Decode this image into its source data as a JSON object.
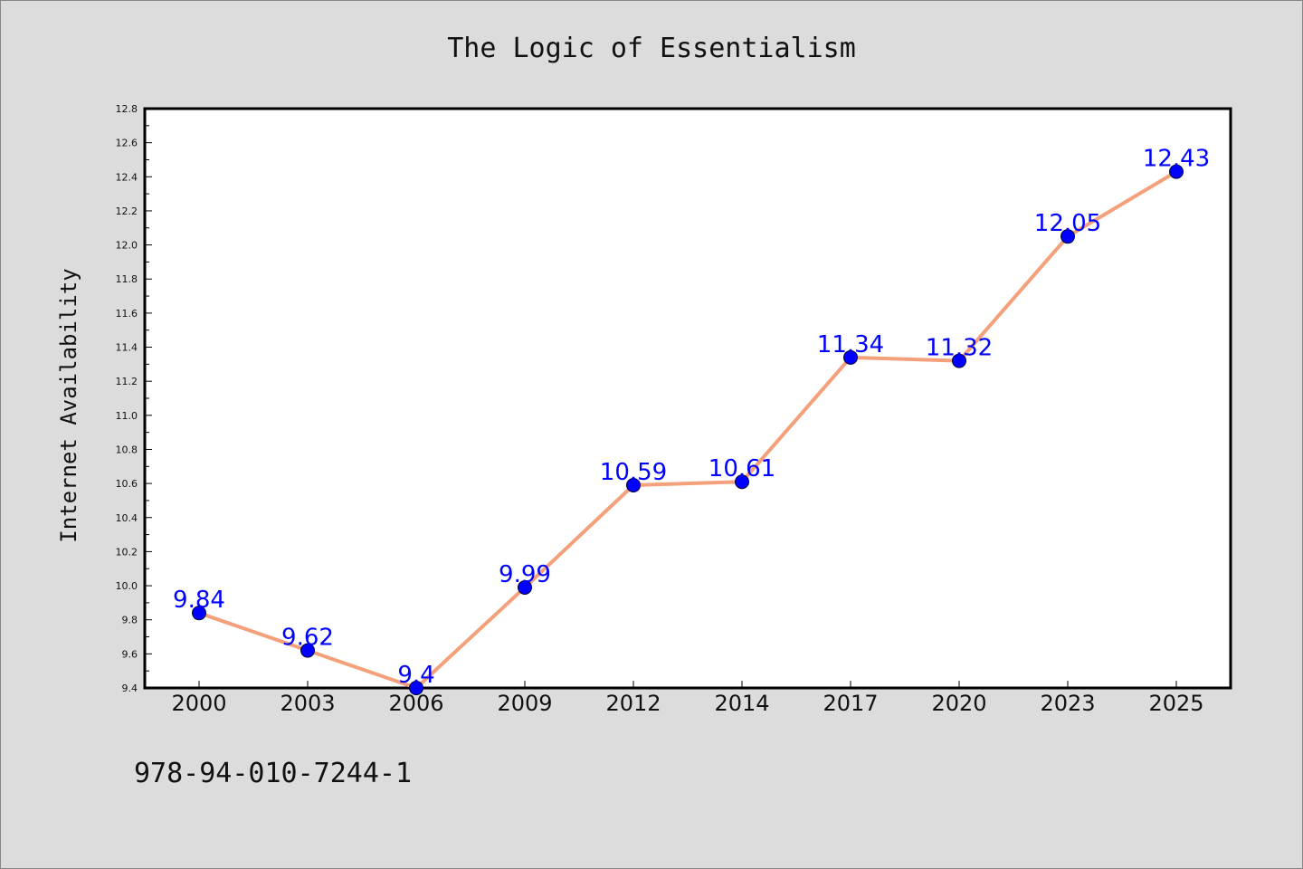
{
  "chart_data": {
    "type": "line",
    "title": "The Logic of Essentialism",
    "xlabel": "",
    "ylabel": "Internet Availability",
    "categories": [
      "2000",
      "2003",
      "2006",
      "2009",
      "2012",
      "2014",
      "2017",
      "2020",
      "2023",
      "2025"
    ],
    "values": [
      9.84,
      9.62,
      9.4,
      9.99,
      10.59,
      10.61,
      11.34,
      11.32,
      12.05,
      12.43
    ],
    "data_labels": [
      "9.84",
      "9.62",
      "9.4",
      "9.99",
      "10.59",
      "10.61",
      "11.34",
      "11.32",
      "12.05",
      "12.43"
    ],
    "ylim": [
      9.4,
      12.8
    ],
    "yticks": [
      "9.4",
      "9.6",
      "9.8",
      "10.0",
      "10.2",
      "10.4",
      "10.6",
      "10.8",
      "11.0",
      "11.2",
      "11.4",
      "11.6",
      "11.8",
      "12.0",
      "12.2",
      "12.4",
      "12.6",
      "12.8"
    ],
    "grid": false,
    "legend": "none",
    "colors": {
      "line": "#f4a07a",
      "marker": "#0000ff",
      "data_label": "#0000ff",
      "background": "#dcdcdc",
      "plot_background": "#ffffff"
    }
  },
  "footnote": "978-94-010-7244-1"
}
